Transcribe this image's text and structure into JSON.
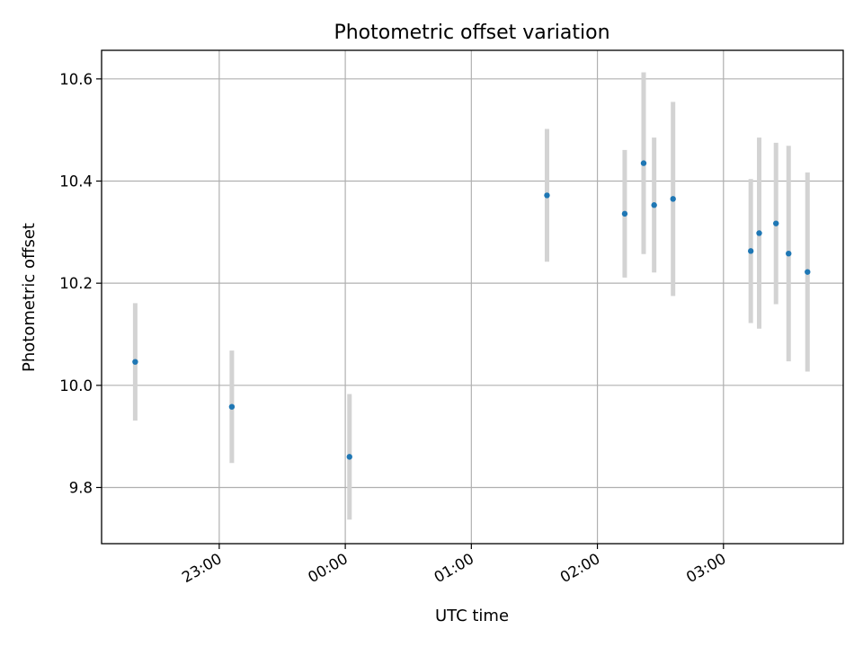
{
  "chart_data": {
    "type": "scatter",
    "title": "Photometric offset variation",
    "xlabel": "UTC time",
    "ylabel": "Photometric offset",
    "grid": true,
    "x_axis_type": "time",
    "xlim": [
      "22:04",
      "03:57"
    ],
    "ylim": [
      9.69,
      10.656
    ],
    "x_ticks": [
      "23:00",
      "00:00",
      "01:00",
      "02:00",
      "03:00"
    ],
    "y_ticks": [
      "9.8",
      "10.0",
      "10.2",
      "10.4",
      "10.6"
    ],
    "colors": {
      "points": "#1f77b4",
      "errorbars": "#d3d3d3",
      "grid": "#b0b0b0"
    },
    "points": [
      {
        "x": "22:20",
        "y": 10.046,
        "err": 0.115
      },
      {
        "x": "23:06",
        "y": 9.958,
        "err": 0.11
      },
      {
        "x": "00:02",
        "y": 9.86,
        "err": 0.123
      },
      {
        "x": "01:36",
        "y": 10.372,
        "err": 0.13
      },
      {
        "x": "02:13",
        "y": 10.336,
        "err": 0.125
      },
      {
        "x": "02:22",
        "y": 10.435,
        "err": 0.178
      },
      {
        "x": "02:27",
        "y": 10.353,
        "err": 0.132
      },
      {
        "x": "02:36",
        "y": 10.365,
        "err": 0.19
      },
      {
        "x": "03:13",
        "y": 10.263,
        "err": 0.141
      },
      {
        "x": "03:17",
        "y": 10.298,
        "err": 0.187
      },
      {
        "x": "03:25",
        "y": 10.317,
        "err": 0.158
      },
      {
        "x": "03:31",
        "y": 10.258,
        "err": 0.211
      },
      {
        "x": "03:40",
        "y": 10.222,
        "err": 0.195
      }
    ]
  }
}
